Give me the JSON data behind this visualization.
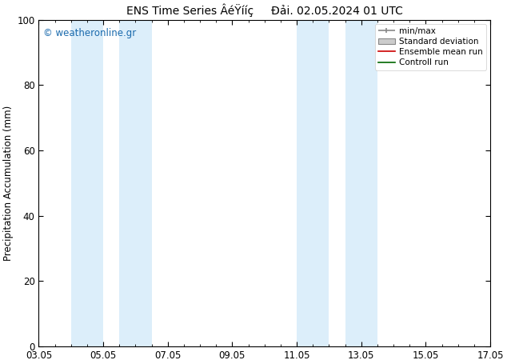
{
  "title": "ENS Time Series ÂéŸííç     Đải. 02.05.2024 01 UTC",
  "ylabel": "Precipitation Accumulation (mm)",
  "ylim": [
    0,
    100
  ],
  "yticks": [
    0,
    20,
    40,
    60,
    80,
    100
  ],
  "watermark": "© weatheronline.gr",
  "shade_color": "#dceefa",
  "xtick_positions": [
    0,
    2,
    4,
    6,
    8,
    10,
    12,
    14
  ],
  "xtick_labels": [
    "03.05",
    "05.05",
    "07.05",
    "09.05",
    "11.05",
    "13.05",
    "15.05",
    "17.05"
  ],
  "legend_labels": [
    "min/max",
    "Standard deviation",
    "Ensemble mean run",
    "Controll run"
  ],
  "background_color": "#ffffff",
  "title_fontsize": 10,
  "watermark_color": "#1a6aad",
  "shade_pairs": [
    [
      1.0,
      2.0
    ],
    [
      2.5,
      3.5
    ],
    [
      8.0,
      9.0
    ],
    [
      9.5,
      10.5
    ]
  ],
  "xlim": [
    0,
    14
  ]
}
